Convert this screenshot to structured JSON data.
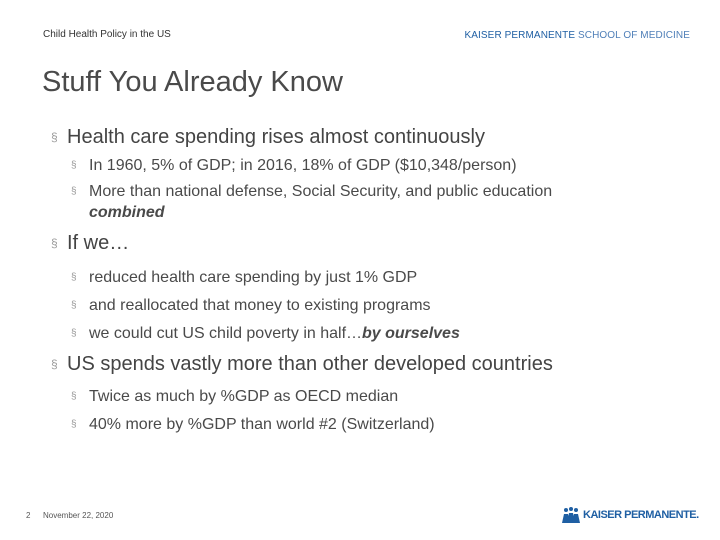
{
  "header": {
    "left": "Child Health Policy in the US",
    "right_bold": "KAISER PERMANENTE",
    "right_light": "SCHOOL OF MEDICINE"
  },
  "title": "Stuff You Already Know",
  "bullet_glyph": "§",
  "sections": [
    {
      "text": "Health care spending rises almost continuously",
      "items": [
        {
          "text": "In 1960, 5% of GDP; in 2016, 18% of GDP ($10,348/person)"
        },
        {
          "text": "More than national defense, Social Security, and public education",
          "emphasis": "combined"
        }
      ]
    },
    {
      "text": "If we…",
      "items": [
        {
          "text": "reduced health care spending by just 1% GDP"
        },
        {
          "text": "and reallocated that money to existing programs"
        },
        {
          "text": "we could cut US child poverty in half…",
          "emphasis": "by ourselves"
        }
      ]
    },
    {
      "text": "US spends vastly more than other developed countries",
      "items": [
        {
          "text": "Twice as much by %GDP as OECD median"
        },
        {
          "text": "40% more by %GDP than world #2 (Switzerland)"
        }
      ]
    }
  ],
  "footer": {
    "page_number": "2",
    "date": "November 22, 2020",
    "logo_text": "KAISER PERMANENTE."
  },
  "colors": {
    "brand_blue": "#1f5fa3",
    "text": "#444444",
    "bullet": "#9a9a9a"
  }
}
